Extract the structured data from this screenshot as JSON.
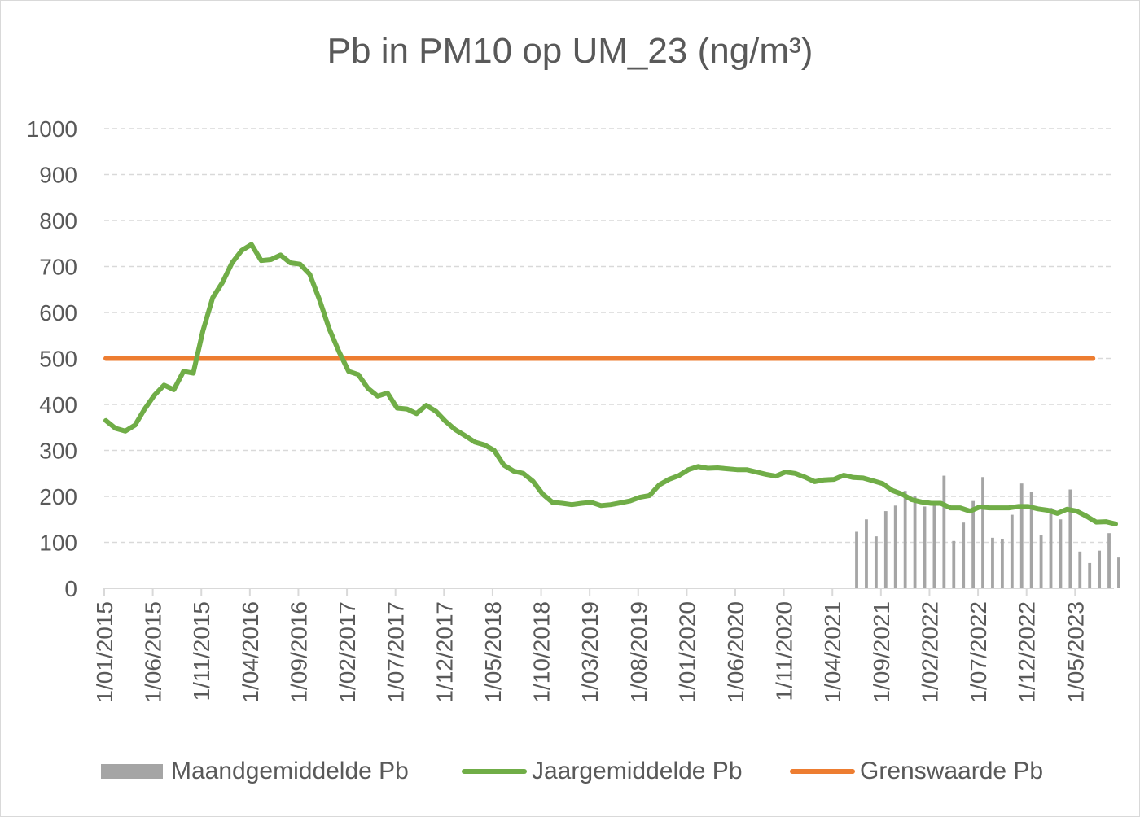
{
  "colors": {
    "monthly": "#a5a5a5",
    "annual": "#70ad47",
    "limit": "#ed7d31",
    "grid": "#d9d9d9",
    "text": "#595959"
  },
  "chart_data": {
    "type": "line",
    "title": "Pb in PM10 op UM_23 (ng/m³)",
    "xlabel": "",
    "ylabel": "",
    "ylim": [
      0,
      1000
    ],
    "yticks": [
      "0",
      "100",
      "200",
      "300",
      "400",
      "500",
      "600",
      "700",
      "800",
      "900",
      "1000"
    ],
    "grid": "horizontal dashed",
    "legend_position": "bottom",
    "x_start": "1/01/2015",
    "x_end": "1/09/2023",
    "xtick_labels": [
      "1/01/2015",
      "1/06/2015",
      "1/11/2015",
      "1/04/2016",
      "1/09/2016",
      "1/02/2017",
      "1/07/2017",
      "1/12/2017",
      "1/05/2018",
      "1/10/2018",
      "1/03/2019",
      "1/08/2019",
      "1/01/2020",
      "1/06/2020",
      "1/11/2020",
      "1/04/2021",
      "1/09/2021",
      "1/02/2022",
      "1/07/2022",
      "1/12/2022",
      "1/05/2023"
    ],
    "series": [
      {
        "name": "Maandgemiddelde Pb",
        "kind": "bar",
        "start": "1/06/2021",
        "values": [
          123,
          150,
          113,
          168,
          180,
          212,
          200,
          178,
          190,
          245,
          103,
          143,
          190,
          242,
          110,
          108,
          160,
          228,
          210,
          115,
          175,
          150,
          215,
          80,
          55,
          82,
          120,
          67
        ]
      },
      {
        "name": "Jaargemiddelde Pb",
        "kind": "line",
        "start": "1/01/2015",
        "values": [
          365,
          348,
          342,
          355,
          390,
          420,
          442,
          432,
          472,
          468,
          560,
          632,
          665,
          708,
          735,
          748,
          713,
          715,
          725,
          708,
          705,
          683,
          628,
          565,
          515,
          472,
          465,
          435,
          418,
          425,
          392,
          390,
          380,
          398,
          385,
          363,
          345,
          332,
          318,
          312,
          300,
          268,
          255,
          250,
          233,
          205,
          187,
          185,
          182,
          185,
          187,
          180,
          182,
          186,
          190,
          198,
          202,
          225,
          237,
          245,
          258,
          265,
          261,
          262,
          260,
          258,
          258,
          253,
          248,
          244,
          253,
          250,
          242,
          232,
          236,
          237,
          246,
          241,
          240,
          234,
          228,
          213,
          205,
          193,
          188,
          185,
          185,
          175,
          175,
          168,
          177,
          175,
          175,
          175,
          178,
          178,
          173,
          170,
          163,
          172,
          168,
          157,
          144,
          145,
          140
        ]
      },
      {
        "name": "Grenswaarde Pb",
        "kind": "line",
        "value": 500
      }
    ]
  }
}
